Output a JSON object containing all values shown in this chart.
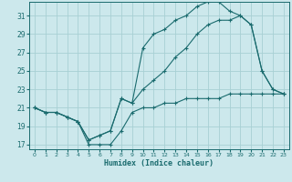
{
  "xlabel": "Humidex (Indice chaleur)",
  "bg_color": "#cce8ec",
  "grid_color": "#a8d0d4",
  "line_color": "#1a6b6e",
  "xlim": [
    -0.5,
    23.5
  ],
  "ylim": [
    16.5,
    32.5
  ],
  "xticks": [
    0,
    1,
    2,
    3,
    4,
    5,
    6,
    7,
    8,
    9,
    10,
    11,
    12,
    13,
    14,
    15,
    16,
    17,
    18,
    19,
    20,
    21,
    22,
    23
  ],
  "yticks": [
    17,
    19,
    21,
    23,
    25,
    27,
    29,
    31
  ],
  "line1_x": [
    0,
    1,
    2,
    3,
    4,
    5,
    6,
    7,
    8,
    9,
    10,
    11,
    12,
    13,
    14,
    15,
    16,
    17,
    18,
    19,
    20,
    21,
    22,
    23
  ],
  "line1_y": [
    21.0,
    20.5,
    20.5,
    20.0,
    19.5,
    17.0,
    17.0,
    17.0,
    18.5,
    20.5,
    21.0,
    21.0,
    21.5,
    21.5,
    22.0,
    22.0,
    22.0,
    22.0,
    22.5,
    22.5,
    22.5,
    22.5,
    22.5,
    22.5
  ],
  "line2_x": [
    0,
    1,
    2,
    3,
    4,
    5,
    6,
    7,
    8,
    9,
    10,
    11,
    12,
    13,
    14,
    15,
    16,
    17,
    18,
    19,
    20,
    21,
    22,
    23
  ],
  "line2_y": [
    21.0,
    20.5,
    20.5,
    20.0,
    19.5,
    17.5,
    18.0,
    18.5,
    22.0,
    21.5,
    27.5,
    29.0,
    29.5,
    30.5,
    31.0,
    32.0,
    32.5,
    32.5,
    31.5,
    31.0,
    30.0,
    25.0,
    23.0,
    22.5
  ],
  "line3_x": [
    0,
    1,
    2,
    3,
    4,
    5,
    6,
    7,
    8,
    9,
    10,
    11,
    12,
    13,
    14,
    15,
    16,
    17,
    18,
    19,
    20,
    21,
    22,
    23
  ],
  "line3_y": [
    21.0,
    20.5,
    20.5,
    20.0,
    19.5,
    17.5,
    18.0,
    18.5,
    22.0,
    21.5,
    23.0,
    24.0,
    25.0,
    26.5,
    27.5,
    29.0,
    30.0,
    30.5,
    30.5,
    31.0,
    30.0,
    25.0,
    23.0,
    22.5
  ]
}
